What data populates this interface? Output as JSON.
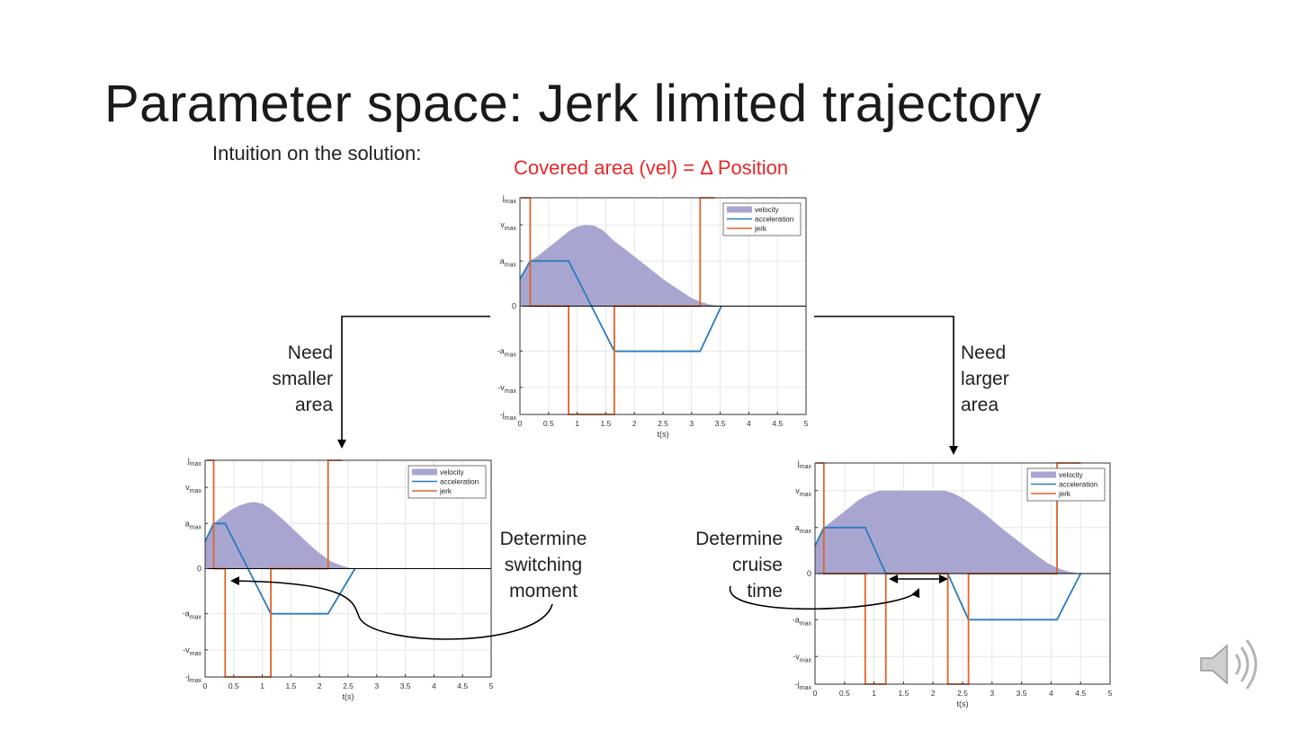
{
  "slide": {
    "title": "Parameter space: Jerk limited trajectory",
    "subtitle": "Intuition on the solution:",
    "caption": "Covered area (vel) = Δ Position",
    "left_branch": [
      "Need",
      "smaller",
      "area"
    ],
    "right_branch": [
      "Need",
      "larger",
      "area"
    ],
    "annot_left": [
      "Determine",
      "switching",
      "moment"
    ],
    "annot_right": [
      "Determine",
      "cruise",
      "time"
    ]
  },
  "colors": {
    "velocity": "#a8a6d0",
    "acceleration": "#2a7bbf",
    "jerk": "#e0632a",
    "caption": "#e8282a"
  },
  "icons": {
    "speaker": "speaker-icon"
  },
  "chart_data": [
    {
      "id": "top",
      "type": "line",
      "xlabel": "t(s)",
      "xlim": [
        0,
        5
      ],
      "ylim": [
        -1.2,
        1.2
      ],
      "x_ticks": [
        "0",
        "0.5",
        "1",
        "1.5",
        "2",
        "2.5",
        "3",
        "3.5",
        "4",
        "4.5",
        "5"
      ],
      "y_ticks": [
        {
          "v": 1.2,
          "base": "j",
          "sub": "max",
          "neg": false
        },
        {
          "v": 0.9,
          "base": "v",
          "sub": "max",
          "neg": false
        },
        {
          "v": 0.5,
          "base": "a",
          "sub": "max",
          "neg": false
        },
        {
          "v": 0,
          "base": "0",
          "sub": "",
          "neg": false
        },
        {
          "v": -0.5,
          "base": "a",
          "sub": "max",
          "neg": true
        },
        {
          "v": -0.9,
          "base": "v",
          "sub": "max",
          "neg": true
        },
        {
          "v": -1.2,
          "base": "j",
          "sub": "max",
          "neg": true
        }
      ],
      "legend": [
        "velocity",
        "acceleration",
        "jerk"
      ],
      "legend_position": "top-right",
      "grid": true,
      "series": [
        {
          "name": "velocity",
          "kind": "area",
          "x": [
            0,
            0.18,
            0.3,
            0.5,
            0.7,
            0.85,
            1.0,
            1.15,
            1.3,
            1.45,
            1.65,
            1.9,
            2.2,
            2.5,
            2.8,
            3.0,
            3.15,
            3.3,
            3.45,
            3.52
          ],
          "y": [
            0.3,
            0.5,
            0.55,
            0.65,
            0.75,
            0.83,
            0.88,
            0.9,
            0.89,
            0.84,
            0.72,
            0.6,
            0.45,
            0.3,
            0.17,
            0.09,
            0.05,
            0.02,
            0.005,
            0
          ]
        },
        {
          "name": "acceleration",
          "kind": "line",
          "x": [
            0,
            0.18,
            0.85,
            1.65,
            3.15,
            3.52
          ],
          "y": [
            0.3,
            0.5,
            0.5,
            -0.5,
            -0.5,
            0
          ]
        },
        {
          "name": "jerk",
          "kind": "line",
          "x": [
            0.02,
            0.18,
            0.18,
            0.85,
            0.85,
            1.65,
            1.65,
            3.15,
            3.15,
            3.4
          ],
          "y": [
            1.2,
            1.2,
            0,
            0,
            -1.2,
            -1.2,
            0,
            0,
            1.2,
            1.2
          ]
        }
      ]
    },
    {
      "id": "left",
      "type": "line",
      "xlabel": "t(s)",
      "xlim": [
        0,
        5
      ],
      "ylim": [
        -1.2,
        1.2
      ],
      "x_ticks": [
        "0",
        "0.5",
        "1",
        "1.5",
        "2",
        "2.5",
        "3",
        "3.5",
        "4",
        "4.5",
        "5"
      ],
      "y_ticks": [
        {
          "v": 1.2,
          "base": "j",
          "sub": "max",
          "neg": false
        },
        {
          "v": 0.9,
          "base": "v",
          "sub": "max",
          "neg": false
        },
        {
          "v": 0.5,
          "base": "a",
          "sub": "max",
          "neg": false
        },
        {
          "v": 0,
          "base": "0",
          "sub": "",
          "neg": false
        },
        {
          "v": -0.5,
          "base": "a",
          "sub": "max",
          "neg": true
        },
        {
          "v": -0.9,
          "base": "v",
          "sub": "max",
          "neg": true
        },
        {
          "v": -1.2,
          "base": "j",
          "sub": "max",
          "neg": true
        }
      ],
      "legend": [
        "velocity",
        "acceleration",
        "jerk"
      ],
      "legend_position": "top-right",
      "grid": true,
      "series": [
        {
          "name": "velocity",
          "kind": "area",
          "x": [
            0,
            0.15,
            0.3,
            0.45,
            0.6,
            0.75,
            0.85,
            1.0,
            1.15,
            1.35,
            1.55,
            1.8,
            2.0,
            2.2,
            2.4,
            2.55,
            2.62
          ],
          "y": [
            0.3,
            0.5,
            0.58,
            0.65,
            0.7,
            0.73,
            0.74,
            0.72,
            0.66,
            0.55,
            0.43,
            0.28,
            0.17,
            0.08,
            0.03,
            0.005,
            0
          ]
        },
        {
          "name": "acceleration",
          "kind": "line",
          "x": [
            0,
            0.15,
            0.35,
            1.15,
            2.15,
            2.62
          ],
          "y": [
            0.3,
            0.5,
            0.5,
            -0.5,
            -0.5,
            0
          ]
        },
        {
          "name": "jerk",
          "kind": "line",
          "x": [
            0.02,
            0.15,
            0.15,
            0.35,
            0.35,
            1.15,
            1.15,
            2.15,
            2.15,
            2.4
          ],
          "y": [
            1.2,
            1.2,
            0,
            0,
            -1.2,
            -1.2,
            0,
            0,
            1.2,
            1.2
          ]
        }
      ]
    },
    {
      "id": "right",
      "type": "line",
      "xlabel": "t(s)",
      "xlim": [
        0,
        5
      ],
      "ylim": [
        -1.2,
        1.2
      ],
      "x_ticks": [
        "0",
        "0.5",
        "1",
        "1.5",
        "2",
        "2.5",
        "3",
        "3.5",
        "4",
        "4.5",
        "5"
      ],
      "y_ticks": [
        {
          "v": 1.2,
          "base": "j",
          "sub": "max",
          "neg": false
        },
        {
          "v": 0.9,
          "base": "v",
          "sub": "max",
          "neg": false
        },
        {
          "v": 0.5,
          "base": "a",
          "sub": "max",
          "neg": false
        },
        {
          "v": 0,
          "base": "0",
          "sub": "",
          "neg": false
        },
        {
          "v": -0.5,
          "base": "a",
          "sub": "max",
          "neg": true
        },
        {
          "v": -0.9,
          "base": "v",
          "sub": "max",
          "neg": true
        },
        {
          "v": -1.2,
          "base": "j",
          "sub": "max",
          "neg": true
        }
      ],
      "legend": [
        "velocity",
        "acceleration",
        "jerk"
      ],
      "legend_position": "top-right",
      "grid": true,
      "series": [
        {
          "name": "velocity",
          "kind": "area",
          "x": [
            0,
            0.15,
            0.35,
            0.55,
            0.7,
            0.85,
            1.0,
            1.1,
            1.2,
            2.1,
            2.2,
            2.35,
            2.55,
            2.85,
            3.15,
            3.45,
            3.75,
            3.95,
            4.15,
            4.3,
            4.45,
            4.5
          ],
          "y": [
            0.3,
            0.5,
            0.6,
            0.7,
            0.78,
            0.84,
            0.88,
            0.9,
            0.9,
            0.9,
            0.9,
            0.87,
            0.8,
            0.66,
            0.5,
            0.35,
            0.2,
            0.11,
            0.05,
            0.02,
            0.004,
            0
          ]
        },
        {
          "name": "acceleration",
          "kind": "line",
          "x": [
            0,
            0.15,
            0.85,
            1.2,
            2.25,
            2.6,
            4.1,
            4.5
          ],
          "y": [
            0.3,
            0.5,
            0.5,
            0,
            0,
            -0.5,
            -0.5,
            0
          ]
        },
        {
          "name": "jerk",
          "kind": "line",
          "x": [
            0.02,
            0.15,
            0.15,
            0.85,
            0.85,
            1.2,
            1.2,
            2.25,
            2.25,
            2.6,
            2.6,
            4.1,
            4.1,
            4.5
          ],
          "y": [
            1.2,
            1.2,
            0,
            0,
            -1.2,
            -1.2,
            0,
            0,
            -1.2,
            -1.2,
            0,
            0,
            1.2,
            1.2
          ]
        }
      ]
    }
  ]
}
